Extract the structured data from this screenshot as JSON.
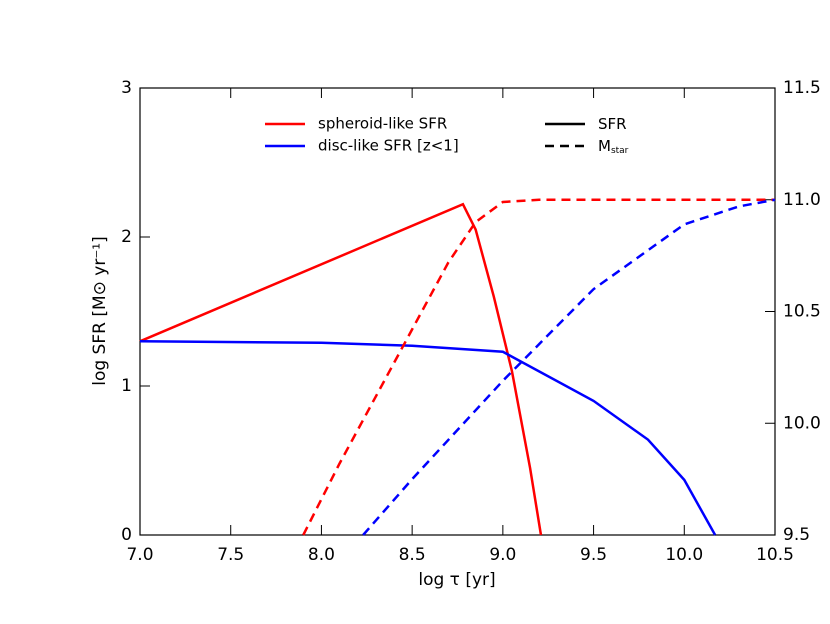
{
  "chart_data": {
    "type": "line",
    "xlabel": "log τ [yr]",
    "ylabel": "log SFR [M⊙ yr⁻¹]",
    "xlim": [
      7.0,
      10.5
    ],
    "ylim": [
      0,
      3
    ],
    "y2lim": [
      9.5,
      11.5
    ],
    "xticks": [
      {
        "value": 7.0,
        "label": "7.0"
      },
      {
        "value": 7.5,
        "label": "7.5"
      },
      {
        "value": 8.0,
        "label": "8.0"
      },
      {
        "value": 8.5,
        "label": "8.5"
      },
      {
        "value": 9.0,
        "label": "9.0"
      },
      {
        "value": 9.5,
        "label": "9.5"
      },
      {
        "value": 10.0,
        "label": "10.0"
      },
      {
        "value": 10.5,
        "label": "10.5"
      }
    ],
    "yticks": [
      0,
      1,
      2,
      3
    ],
    "y2ticks": [
      9.5,
      {
        "value": 10.0,
        "label": "10.0"
      },
      10.5,
      {
        "value": 11.0,
        "label": "11.0"
      },
      11.5
    ],
    "series": [
      {
        "name": "spheroid-like SFR",
        "color": "#ff0000",
        "dash": false,
        "x": [
          7.0,
          8.78,
          8.85,
          8.95,
          9.05,
          9.15,
          9.21
        ],
        "values": [
          1.3,
          2.22,
          2.05,
          1.6,
          1.1,
          0.45,
          0.0
        ]
      },
      {
        "name": "disc-like SFR [z<1]",
        "color": "#0000ff",
        "dash": false,
        "x": [
          7.0,
          8.0,
          8.5,
          9.0,
          9.5,
          9.8,
          10.0,
          10.17
        ],
        "values": [
          1.3,
          1.29,
          1.27,
          1.23,
          0.9,
          0.64,
          0.37,
          0.0
        ]
      },
      {
        "color": "#ff0000",
        "dash": true,
        "axis": "y2",
        "x": [
          7.9,
          8.1,
          8.3,
          8.5,
          8.7,
          8.85,
          9.0,
          9.2,
          10.5
        ],
        "values": [
          9.5,
          9.82,
          10.12,
          10.42,
          10.72,
          10.9,
          10.99,
          11.0,
          11.0
        ]
      },
      {
        "color": "#0000ff",
        "dash": true,
        "axis": "y2",
        "x": [
          8.23,
          8.5,
          9.0,
          9.5,
          10.0,
          10.3,
          10.5
        ],
        "values": [
          9.5,
          9.75,
          10.19,
          10.6,
          10.89,
          10.97,
          11.0
        ]
      }
    ],
    "style_legend": [
      {
        "label": "SFR",
        "dash": false
      },
      {
        "label": "M",
        "sub": "star",
        "dash": true
      }
    ]
  }
}
